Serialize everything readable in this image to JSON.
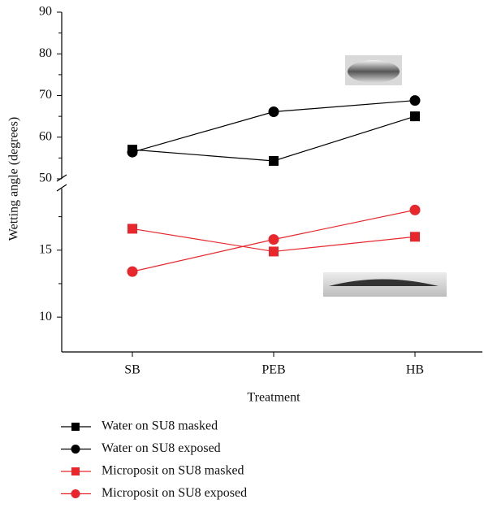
{
  "chart_data": [
    {
      "type": "line",
      "ylim": [
        50,
        90
      ],
      "yticks": [
        50,
        60,
        70,
        80,
        90
      ],
      "minor_yticks": [
        55,
        65,
        75,
        85
      ],
      "series": [
        {
          "name": "Water on SU8 masked",
          "color": "#000000",
          "marker": "square",
          "values": [
            57.0,
            54.3,
            65.0
          ]
        },
        {
          "name": "Water on SU8 exposed",
          "color": "#000000",
          "marker": "circle",
          "values": [
            56.4,
            66.1,
            68.8
          ]
        }
      ]
    },
    {
      "type": "line",
      "categories": [
        "SB",
        "PEB",
        "HB"
      ],
      "xlabel": "Treatment",
      "ylabel": "Wetting angle (degrees)",
      "ylim": [
        7.4,
        19.6
      ],
      "yticks": [
        10,
        15
      ],
      "minor_yticks": [
        12.5,
        17.5
      ],
      "series": [
        {
          "name": "Microposit on SU8 masked",
          "color": "#e8262b",
          "marker": "square",
          "values": [
            16.6,
            14.9,
            16.0
          ]
        },
        {
          "name": "Microposit on SU8 exposed",
          "color": "#e8262b",
          "marker": "circle",
          "values": [
            13.4,
            15.8,
            18.0
          ]
        }
      ]
    }
  ]
}
